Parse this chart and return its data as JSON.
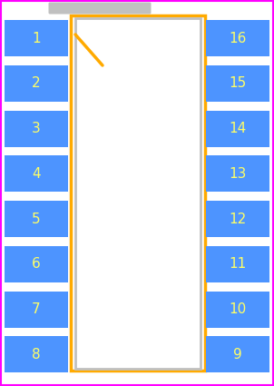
{
  "background_color": "#ffffff",
  "outer_border_color": "#ff00ff",
  "pkg_body_color": "#ffffff",
  "pkg_body_border_color": "#c0c0c0",
  "courtyard_color": "#ffaa00",
  "pin_color": "#4d94ff",
  "pin_text_color": "#ffff66",
  "pin1_marker_color": "#ffaa00",
  "silkscreen_color": "#c0c0c0",
  "num_pins_per_side": 8,
  "left_pins": [
    1,
    2,
    3,
    4,
    5,
    6,
    7,
    8
  ],
  "right_pins": [
    16,
    15,
    14,
    13,
    12,
    11,
    10,
    9
  ],
  "fig_width": 3.02,
  "fig_height": 4.25,
  "dpi": 100
}
